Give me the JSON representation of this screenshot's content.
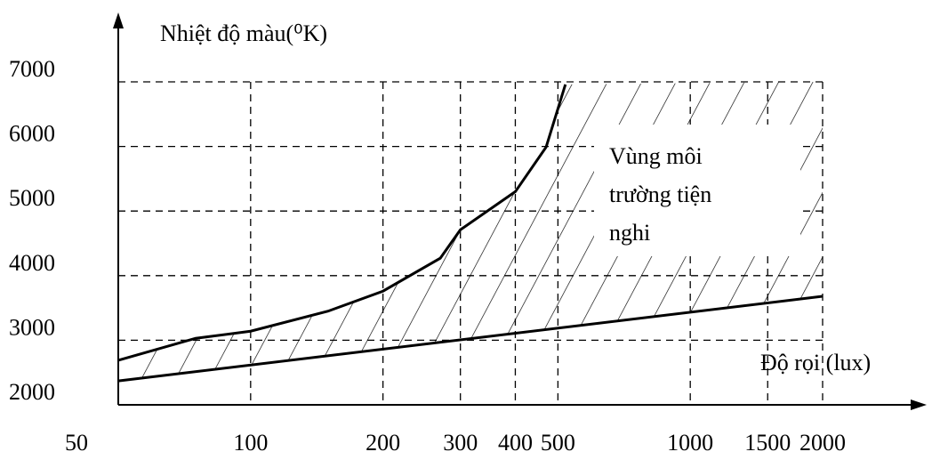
{
  "chart_data": {
    "type": "line",
    "y_axis_label": "Nhiệt độ màu(⁰K)",
    "x_axis_label": "Độ rọi (lux)",
    "annotation": [
      "Vùng môi",
      "trường tiện",
      "nghi"
    ],
    "xscale": "log",
    "xlim": [
      50,
      2000
    ],
    "xticks": [
      50,
      100,
      200,
      300,
      400,
      500,
      1000,
      1500,
      2000
    ],
    "ylim": [
      2000,
      7000
    ],
    "yticks": [
      2000,
      3000,
      4000,
      5000,
      6000,
      7000
    ],
    "grid": true,
    "series": [
      {
        "color": "#000000",
        "x": [
          50,
          75,
          100,
          150,
          200,
          270,
          300,
          400,
          470,
          520
        ],
        "values": [
          2690,
          3030,
          3140,
          3450,
          3760,
          4270,
          4710,
          5300,
          5990,
          6960
        ]
      },
      {
        "color": "#000000",
        "x": [
          50,
          2000
        ],
        "values": [
          2370,
          3680
        ]
      }
    ]
  }
}
